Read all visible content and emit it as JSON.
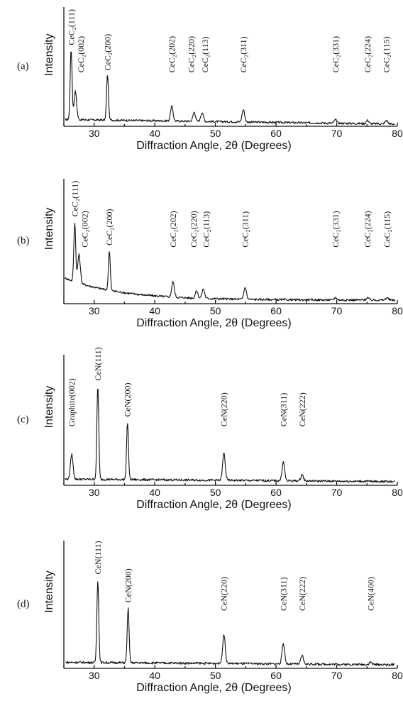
{
  "chart_data": [
    {
      "type": "line",
      "panel_label": "(a)",
      "ylabel": "Intensity",
      "xlabel": "Diffraction Angle, 2θ (Degrees)",
      "xlim": [
        25,
        80
      ],
      "xticks": [
        30,
        40,
        50,
        60,
        70,
        80
      ],
      "ytick_labels": false,
      "grid": false,
      "peaks": [
        {
          "x": 26.2,
          "y": 0.62,
          "label": "CeC₂(111)"
        },
        {
          "x": 26.9,
          "y": 0.25,
          "label": "CeC₂(002)"
        },
        {
          "x": 32.2,
          "y": 0.4,
          "label": "CeC₂(200)"
        },
        {
          "x": 42.8,
          "y": 0.13,
          "label": "CeC₂(202)"
        },
        {
          "x": 46.5,
          "y": 0.08,
          "label": "CeC₂(220)"
        },
        {
          "x": 47.8,
          "y": 0.08,
          "label": "CeC₂(113)"
        },
        {
          "x": 54.6,
          "y": 0.11,
          "label": "CeC₂(311)"
        },
        {
          "x": 69.8,
          "y": 0.03,
          "label": "CeC₂(331)"
        },
        {
          "x": 75.1,
          "y": 0.03,
          "label": "CeC₂(224)"
        },
        {
          "x": 78.2,
          "y": 0.03,
          "label": "CeC₂(115)"
        }
      ]
    },
    {
      "type": "line",
      "panel_label": "(b)",
      "ylabel": "Intensity",
      "xlabel": "Diffraction Angle, 2θ (Degrees)",
      "xlim": [
        25,
        80
      ],
      "xticks": [
        30,
        40,
        50,
        60,
        70,
        80
      ],
      "ytick_labels": false,
      "grid": false,
      "peaks": [
        {
          "x": 26.8,
          "y": 0.5,
          "label": "CeC₂(111)"
        },
        {
          "x": 27.5,
          "y": 0.24,
          "label": "CeC₂(002)"
        },
        {
          "x": 32.5,
          "y": 0.33,
          "label": "CeC₂(200)"
        },
        {
          "x": 43.0,
          "y": 0.13,
          "label": "CeC₂(202)"
        },
        {
          "x": 46.9,
          "y": 0.06,
          "label": "CeC₂(220)"
        },
        {
          "x": 48.0,
          "y": 0.08,
          "label": "CeC₂(113)"
        },
        {
          "x": 54.9,
          "y": 0.1,
          "label": "CeC₂(311)"
        },
        {
          "x": 69.8,
          "y": 0.02,
          "label": "CeC₂(331)"
        },
        {
          "x": 75.1,
          "y": 0.02,
          "label": "CeC₂(224)"
        },
        {
          "x": 78.3,
          "y": 0.02,
          "label": "CeC₂(115)"
        }
      ]
    },
    {
      "type": "line",
      "panel_label": "(c)",
      "ylabel": "Intensity",
      "xlabel": "Diffraction Angle, 2θ (Degrees)",
      "xlim": [
        25,
        80
      ],
      "xticks": [
        30,
        40,
        50,
        60,
        70,
        80
      ],
      "ytick_labels": false,
      "grid": false,
      "peaks": [
        {
          "x": 26.3,
          "y": 0.2,
          "label": "Graphite(002)"
        },
        {
          "x": 30.6,
          "y": 0.75,
          "label": "CeN(111)"
        },
        {
          "x": 35.5,
          "y": 0.46,
          "label": "CeN(200)"
        },
        {
          "x": 51.4,
          "y": 0.22,
          "label": "CeN(220)"
        },
        {
          "x": 61.2,
          "y": 0.15,
          "label": "CeN(311)"
        },
        {
          "x": 64.3,
          "y": 0.05,
          "label": "CeN(222)"
        }
      ]
    },
    {
      "type": "line",
      "panel_label": "(d)",
      "ylabel": "Intensity",
      "xlabel": "Diffraction Angle, 2θ (Degrees)",
      "xlim": [
        25,
        80
      ],
      "xticks": [
        30,
        40,
        50,
        60,
        70,
        80
      ],
      "ytick_labels": false,
      "grid": false,
      "peaks": [
        {
          "x": 30.6,
          "y": 0.68,
          "label": "CeN(111)"
        },
        {
          "x": 35.6,
          "y": 0.45,
          "label": "CeN(200)"
        },
        {
          "x": 51.4,
          "y": 0.24,
          "label": "CeN(220)"
        },
        {
          "x": 61.2,
          "y": 0.17,
          "label": "CeN(311)"
        },
        {
          "x": 64.3,
          "y": 0.07,
          "label": "CeN(222)"
        },
        {
          "x": 75.6,
          "y": 0.02,
          "label": "CeN(400)"
        }
      ]
    }
  ]
}
